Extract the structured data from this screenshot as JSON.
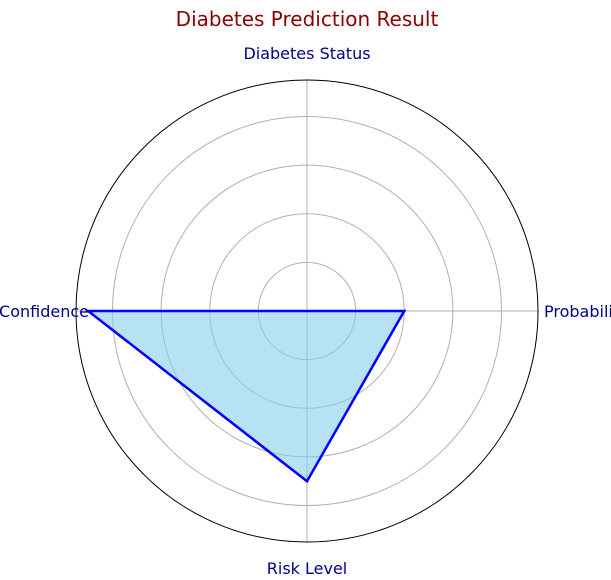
{
  "chart_data": {
    "type": "radar",
    "title": "Diabetes Prediction Result",
    "categories": [
      "Probability",
      "Diabetes Status",
      "Confidence",
      "Risk Level"
    ],
    "series": [
      {
        "values": [
          0.4,
          0.0,
          0.9,
          0.7
        ]
      }
    ],
    "rlim": [
      0,
      0.95
    ],
    "r_gridlines": [
      0.2,
      0.4,
      0.6,
      0.8
    ],
    "grid": true,
    "colors": {
      "title": "#8b0000",
      "labels": "#00008b",
      "line": "#0000ff",
      "fill": "#87ceeb",
      "grid": "#b0b0b0",
      "frame": "#000000"
    }
  }
}
